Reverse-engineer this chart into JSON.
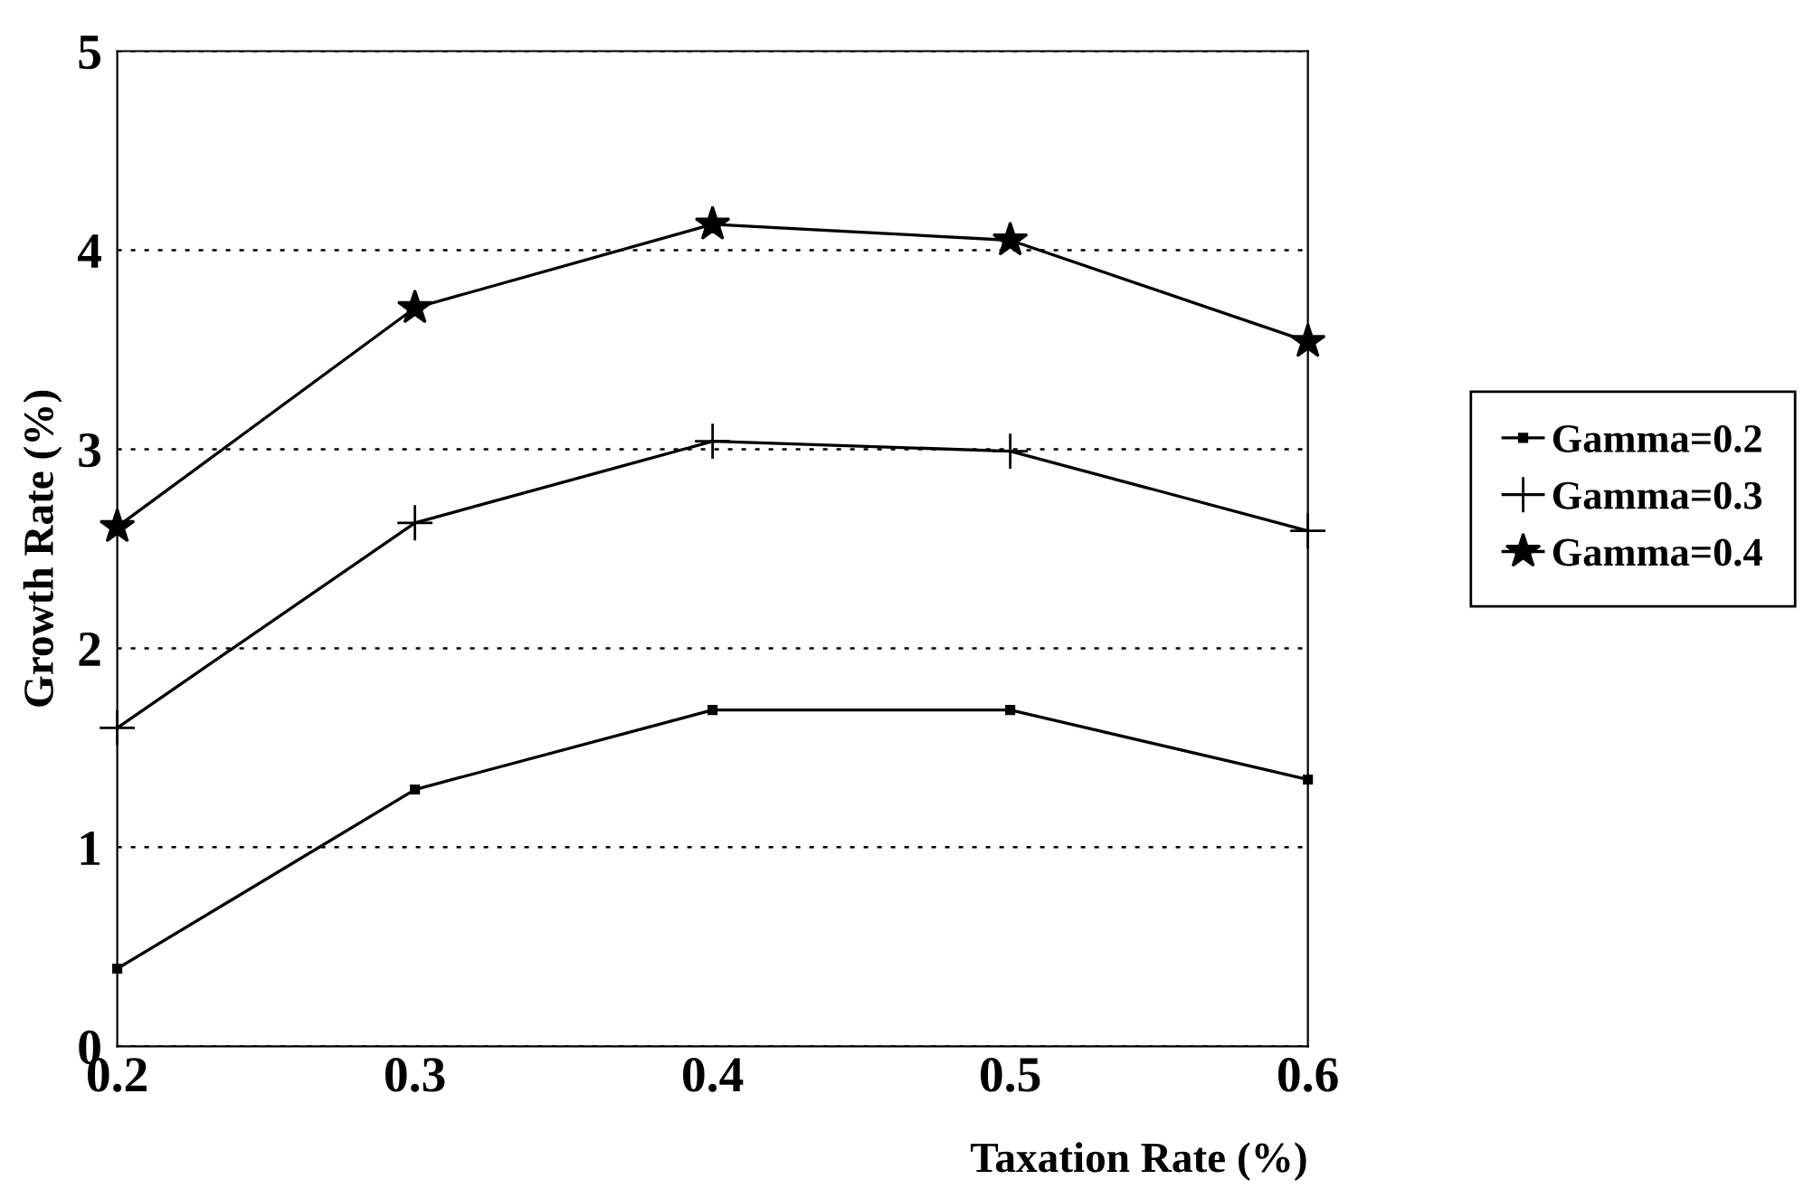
{
  "chart_data": {
    "type": "line",
    "xlabel": "Taxation Rate (%)",
    "ylabel": "Growth Rate (%)",
    "x": [
      0.2,
      0.3,
      0.4,
      0.5,
      0.6
    ],
    "series": [
      {
        "name": "Gamma=0.2",
        "color": "#000000",
        "marker": "square",
        "values": [
          0.39,
          1.29,
          1.69,
          1.69,
          1.34
        ]
      },
      {
        "name": "Gamma=0.3",
        "color": "#000000",
        "marker": "cross",
        "values": [
          1.6,
          2.63,
          3.04,
          2.99,
          2.59
        ]
      },
      {
        "name": "Gamma=0.4",
        "color": "#000000",
        "marker": "star",
        "values": [
          2.61,
          3.71,
          4.13,
          4.05,
          3.54
        ]
      }
    ],
    "xlim": [
      0.2,
      0.6
    ],
    "xticks": [
      0.2,
      0.3,
      0.4,
      0.5,
      0.6
    ],
    "ylim": [
      0,
      5
    ],
    "yticks": [
      0,
      1,
      2,
      3,
      4,
      5
    ],
    "grid": "y",
    "legend": "right",
    "line_style": "solid"
  }
}
